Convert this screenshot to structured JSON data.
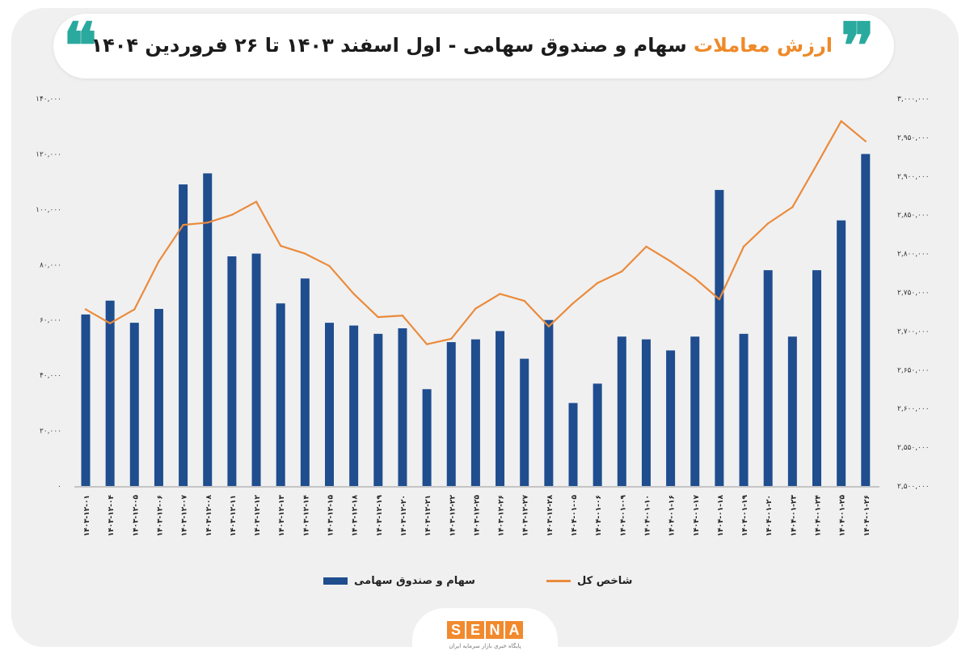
{
  "header": {
    "title_accent": "ارزش معاملات",
    "title_rest": " سهام و صندوق سهامی - اول اسفند ۱۴۰۳ تا ۲۶ فروردین ۱۴۰۴",
    "quote_open": "❞",
    "quote_close": "❝"
  },
  "logo": {
    "letters": [
      "S",
      "E",
      "N",
      "A"
    ],
    "subtitle": "پایگاه خبری بازار سرمایه ایران"
  },
  "colors": {
    "bar": "#1f4d8e",
    "line": "#ea8b3b",
    "accent": "#ee8a2a",
    "quote": "#2aa99e"
  },
  "chart_data": {
    "type": "bar+line",
    "categories": [
      "۱۴۰۳-۱۲-۰۱",
      "۱۴۰۳-۱۲-۰۴",
      "۱۴۰۳-۱۲-۰۵",
      "۱۴۰۳-۱۲-۰۶",
      "۱۴۰۳-۱۲-۰۷",
      "۱۴۰۳-۱۲-۰۸",
      "۱۴۰۳-۱۲-۱۱",
      "۱۴۰۳-۱۲-۱۲",
      "۱۴۰۳-۱۲-۱۳",
      "۱۴۰۳-۱۲-۱۴",
      "۱۴۰۳-۱۲-۱۵",
      "۱۴۰۳-۱۲-۱۸",
      "۱۴۰۳-۱۲-۱۹",
      "۱۴۰۳-۱۲-۲۰",
      "۱۴۰۳-۱۲-۲۱",
      "۱۴۰۳-۱۲-۲۲",
      "۱۴۰۳-۱۲-۲۵",
      "۱۴۰۳-۱۲-۲۶",
      "۱۴۰۳-۱۲-۲۷",
      "۱۴۰۳-۱۲-۲۸",
      "۱۴۰۴-۰۱-۰۵",
      "۱۴۰۴-۰۱-۰۶",
      "۱۴۰۴-۰۱-۰۹",
      "۱۴۰۴-۰۱-۱۰",
      "۱۴۰۴-۰۱-۱۶",
      "۱۴۰۴-۰۱-۱۷",
      "۱۴۰۴-۰۱-۱۸",
      "۱۴۰۴-۰۱-۱۹",
      "۱۴۰۴-۰۱-۲۰",
      "۱۴۰۴-۰۱-۲۳",
      "۱۴۰۴-۰۱-۲۴",
      "۱۴۰۴-۰۱-۲۵",
      "۱۴۰۴-۰۱-۲۶"
    ],
    "series": [
      {
        "name": "سهام و صندوق سهامی",
        "kind": "bar",
        "axis": "left",
        "values": [
          62000,
          67000,
          59000,
          64000,
          109000,
          113000,
          83000,
          84000,
          66000,
          75000,
          59000,
          58000,
          55000,
          57000,
          35000,
          52000,
          53000,
          56000,
          46000,
          60000,
          30000,
          37000,
          54000,
          53000,
          49000,
          54000,
          107000,
          55000,
          78000,
          54000,
          78000,
          96000,
          120000
        ]
      },
      {
        "name": "شاخص کل",
        "kind": "line",
        "axis": "right",
        "values": [
          2728000,
          2710000,
          2728000,
          2790000,
          2837000,
          2840000,
          2850000,
          2867000,
          2810000,
          2800000,
          2784000,
          2748000,
          2718000,
          2720000,
          2683000,
          2690000,
          2729000,
          2748000,
          2739000,
          2706000,
          2736000,
          2762000,
          2777000,
          2809000,
          2790000,
          2768000,
          2741000,
          2809000,
          2839000,
          2860000,
          2915000,
          2971000,
          2945000
        ]
      }
    ],
    "y_left": {
      "min": 0,
      "max": 140000,
      "ticks": [
        0,
        20000,
        40000,
        60000,
        80000,
        100000,
        120000,
        140000
      ],
      "tick_labels": [
        "۰",
        "۲۰,۰۰۰",
        "۴۰,۰۰۰",
        "۶۰,۰۰۰",
        "۸۰,۰۰۰",
        "۱۰۰,۰۰۰",
        "۱۲۰,۰۰۰",
        "۱۴۰,۰۰۰"
      ]
    },
    "y_right": {
      "min": 2500000,
      "max": 3000000,
      "ticks": [
        2500000,
        2550000,
        2600000,
        2650000,
        2700000,
        2750000,
        2800000,
        2850000,
        2900000,
        2950000,
        3000000
      ],
      "tick_labels": [
        "۲,۵۰۰,۰۰۰",
        "۲,۵۵۰,۰۰۰",
        "۲,۶۰۰,۰۰۰",
        "۲,۶۵۰,۰۰۰",
        "۲,۷۰۰,۰۰۰",
        "۲,۷۵۰,۰۰۰",
        "۲,۸۰۰,۰۰۰",
        "۲,۸۵۰,۰۰۰",
        "۲,۹۰۰,۰۰۰",
        "۲,۹۵۰,۰۰۰",
        "۳,۰۰۰,۰۰۰"
      ]
    },
    "grid": false,
    "legend": {
      "position": "bottom",
      "entries": [
        "سهام و صندوق سهامی",
        "شاخص کل"
      ]
    }
  }
}
